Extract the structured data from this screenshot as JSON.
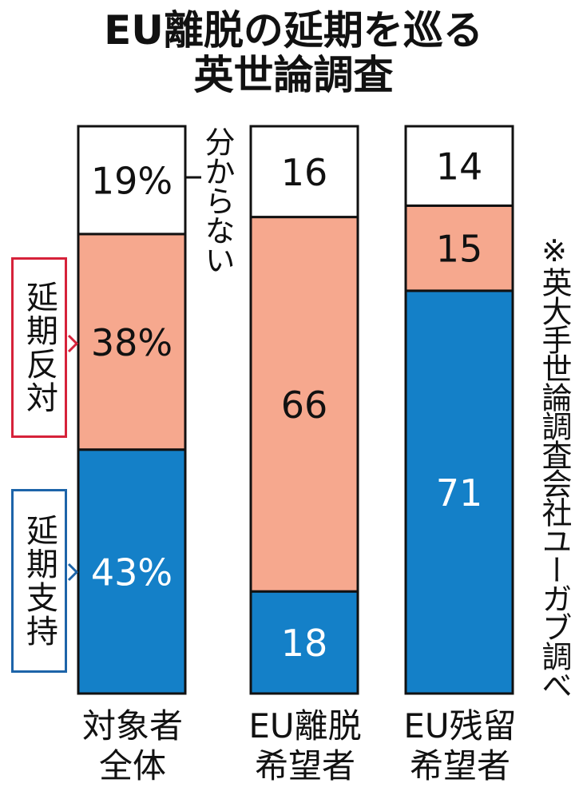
{
  "header": {
    "title_line1": "EU離脱の延期を巡る",
    "title_line2": "英世論調査"
  },
  "note": "※英大手世論調査会社ユーガブ調べ",
  "legend": {
    "unknown": "分からない",
    "against": "延期反対",
    "support": "延期支持"
  },
  "colors": {
    "unknown": "#ffffff",
    "against": "#f6a88e",
    "support": "#1480c8",
    "against_border": "#d6223a",
    "support_border": "#1d64a9"
  },
  "chart_data": {
    "type": "bar",
    "stacked": true,
    "unit": "%",
    "categories": [
      "対象者\n全体",
      "EU離脱\n希望者",
      "EU残留\n希望者"
    ],
    "category_lines": [
      [
        "対象者",
        "全体"
      ],
      [
        "EU離脱",
        "希望者"
      ],
      [
        "EU残留",
        "希望者"
      ]
    ],
    "series": [
      {
        "name": "延期支持",
        "values": [
          43,
          18,
          71
        ],
        "labels": [
          "43%",
          "18",
          "71"
        ]
      },
      {
        "name": "延期反対",
        "values": [
          38,
          66,
          15
        ],
        "labels": [
          "38%",
          "66",
          "15"
        ]
      },
      {
        "name": "分からない",
        "values": [
          19,
          16,
          14
        ],
        "labels": [
          "19%",
          "16",
          "14"
        ]
      }
    ]
  }
}
